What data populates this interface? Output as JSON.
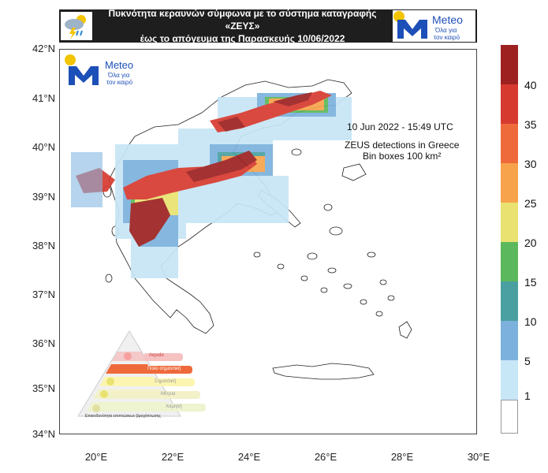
{
  "header": {
    "line1": "Πυκνότητα κεραυνών σύμφωνα με το σύστημα καταγραφής «ΖΕΥΣ»",
    "line2": "έως το απόγευμα της Παρασκευής 10/06/2022"
  },
  "logo": {
    "name": "Meteo",
    "tagline_1": "Όλα για",
    "tagline_2": "τον καιρό"
  },
  "map": {
    "lat_labels": [
      "42°N",
      "41°N",
      "40°N",
      "39°N",
      "38°N",
      "37°N",
      "36°N",
      "35°N",
      "34°N"
    ],
    "lon_labels": [
      "20°E",
      "22°E",
      "24°E",
      "26°E",
      "28°E",
      "30°E"
    ],
    "date_text": "10  Jun 2022 - 15:49 UTC",
    "title_line1": "ZEUS detections in Greece",
    "title_line2": "Bin boxes 100 km²"
  },
  "legend": {
    "labels": [
      "40",
      "35",
      "30",
      "25",
      "20",
      "15",
      "10",
      "5",
      "1"
    ],
    "colors": [
      "#9d2121",
      "#d63a2f",
      "#ee6a3b",
      "#f7a34b",
      "#e9e270",
      "#5cb85c",
      "#4aa0a0",
      "#7cb1dd",
      "#c7e6f6",
      "#ffffff"
    ]
  },
  "warning_pyramid": {
    "levels": [
      "Ακραία",
      "Πολύ σημαντική",
      "Σημαντική",
      "Μέτρια",
      "Χαμηλή"
    ],
    "caption": "Επικινδυνότητα επιπτώσεων βροχόπτωσης"
  }
}
